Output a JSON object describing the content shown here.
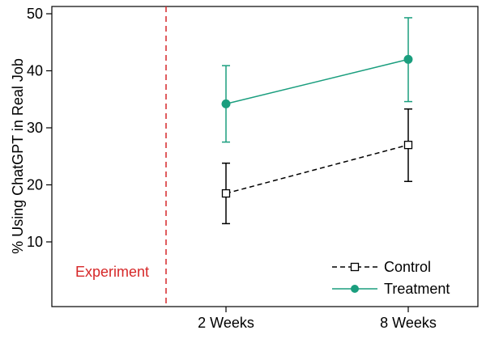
{
  "chart_data": {
    "type": "line",
    "title": "",
    "xlabel": "",
    "ylabel": "% Using ChatGPT in Real Job",
    "categories": [
      "2 Weeks",
      "8 Weeks"
    ],
    "ylim": [
      0,
      50
    ],
    "yticks": [
      10,
      20,
      30,
      40,
      50
    ],
    "grid": false,
    "legend_position": "bottom-right",
    "series": [
      {
        "name": "Control",
        "values": [
          18.5,
          27.0
        ],
        "ci_low": [
          13.2,
          20.6
        ],
        "ci_high": [
          23.8,
          33.3
        ],
        "color": "#000000",
        "line_style": "dashed",
        "marker": "open-square"
      },
      {
        "name": "Treatment",
        "values": [
          34.2,
          42.0
        ],
        "ci_low": [
          27.5,
          34.6
        ],
        "ci_high": [
          40.9,
          49.3
        ],
        "color": "#1a9e7e",
        "line_style": "solid",
        "marker": "filled-circle"
      }
    ],
    "annotations": [
      {
        "text": "Experiment",
        "type": "vertical-line",
        "x_position": "before first category",
        "color": "#d62728",
        "line_style": "dashed"
      }
    ]
  }
}
